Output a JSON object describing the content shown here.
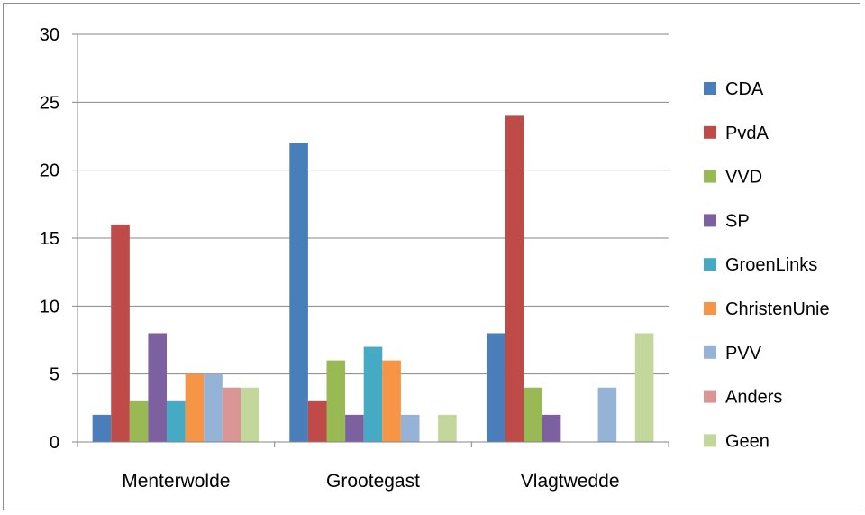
{
  "chart_data": {
    "type": "bar",
    "categories": [
      "Menterwolde",
      "Grootegast",
      "Vlagtwedde"
    ],
    "ylim": [
      0,
      30
    ],
    "yticks": [
      0,
      5,
      10,
      15,
      20,
      25,
      30
    ],
    "grid": true,
    "legend_position": "right",
    "series": [
      {
        "name": "CDA",
        "color": "#4a7ebb",
        "values": [
          2,
          22,
          8
        ]
      },
      {
        "name": "PvdA",
        "color": "#be4b48",
        "values": [
          16,
          3,
          24
        ]
      },
      {
        "name": "VVD",
        "color": "#98b954",
        "values": [
          3,
          6,
          4
        ]
      },
      {
        "name": "SP",
        "color": "#7d60a0",
        "values": [
          8,
          2,
          2
        ]
      },
      {
        "name": "GroenLinks",
        "color": "#46aac5",
        "values": [
          3,
          7,
          0
        ]
      },
      {
        "name": "ChristenUnie",
        "color": "#f69546",
        "values": [
          5,
          6,
          0
        ]
      },
      {
        "name": "PVV",
        "color": "#95b3d7",
        "values": [
          5,
          2,
          4
        ]
      },
      {
        "name": "Anders",
        "color": "#d99694",
        "values": [
          4,
          0,
          0
        ]
      },
      {
        "name": "Geen",
        "color": "#c3d69b",
        "values": [
          4,
          2,
          8
        ]
      }
    ]
  }
}
